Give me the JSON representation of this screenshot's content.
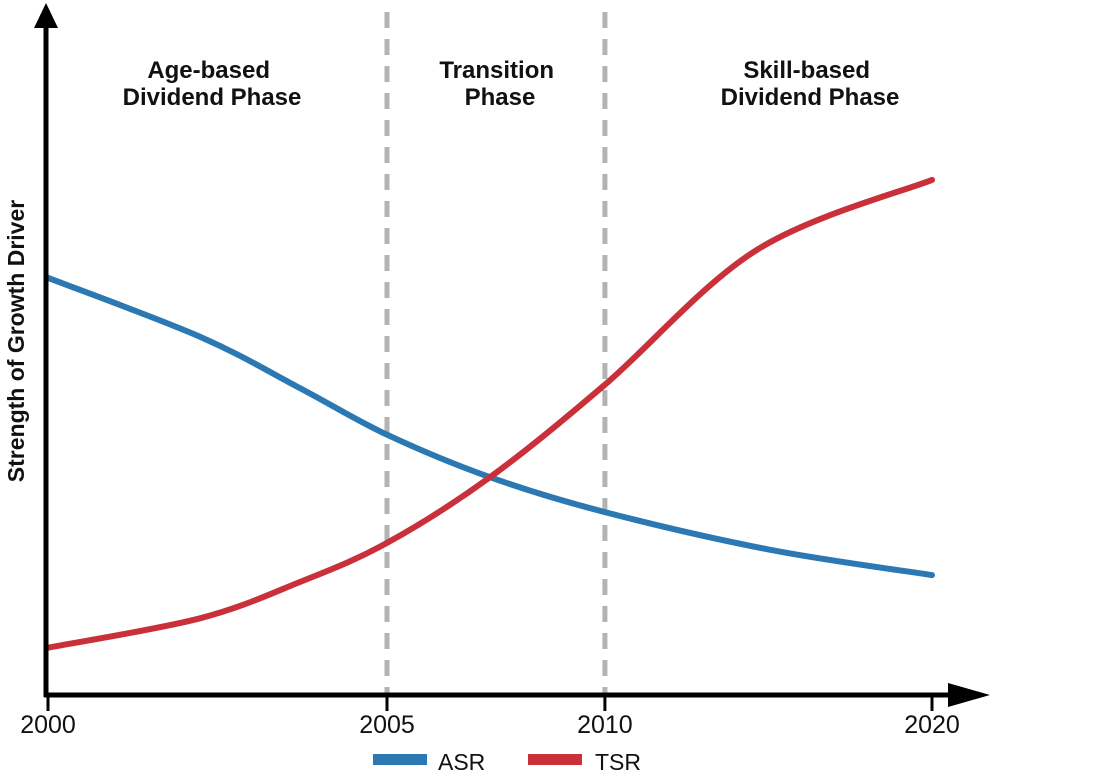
{
  "colors": {
    "asr": "#2B78B3",
    "tsr": "#C9303A",
    "divider": "#B3B3B3",
    "axis": "#000000"
  },
  "chart_data": {
    "type": "line",
    "title": "",
    "xlabel": "",
    "ylabel": "Strength of Growth Driver",
    "ylim": [
      0,
      100
    ],
    "y_axis_ticks": "none (conceptual axis, arrow only)",
    "x_axis_note": "non-linear spacing as drawn; pos = fraction of axis length from 2000 tick to 2020 tick",
    "x_ticks": [
      {
        "label": "2000",
        "pos": 0.0
      },
      {
        "label": "2005",
        "pos": 0.3835
      },
      {
        "label": "2010",
        "pos": 0.63
      },
      {
        "label": "2020",
        "pos": 1.0
      }
    ],
    "reference_lines": [
      {
        "at": "2005",
        "pos": 0.3835
      },
      {
        "at": "2010",
        "pos": 0.63
      }
    ],
    "phases": [
      {
        "line1": "Age-based",
        "line2": "Dividend Phase",
        "from": "2000",
        "to": "2005"
      },
      {
        "line1": "Transition",
        "line2": "Phase",
        "from": "2005",
        "to": "2010"
      },
      {
        "line1": "Skill-based",
        "line2": "Dividend Phase",
        "from": "2010",
        "to": "2020"
      }
    ],
    "series": [
      {
        "name": "ASR",
        "color": "#2B78B3",
        "points": [
          {
            "year": 2000,
            "pos": 0.0,
            "strength": 60.9
          },
          {
            "year": 2002,
            "pos": 0.172,
            "strength": 52.3
          },
          {
            "year": 2004,
            "pos": 0.285,
            "strength": 44.8
          },
          {
            "year": 2005,
            "pos": 0.3835,
            "strength": 38.0
          },
          {
            "year": 2007,
            "pos": 0.5,
            "strength": 31.8
          },
          {
            "year": 2010,
            "pos": 0.63,
            "strength": 26.7
          },
          {
            "year": 2015,
            "pos": 0.817,
            "strength": 21.2
          },
          {
            "year": 2020,
            "pos": 1.0,
            "strength": 17.5
          }
        ]
      },
      {
        "name": "TSR",
        "color": "#C9303A",
        "points": [
          {
            "year": 2000,
            "pos": 0.0,
            "strength": 6.9
          },
          {
            "year": 2002,
            "pos": 0.172,
            "strength": 11.2
          },
          {
            "year": 2004,
            "pos": 0.285,
            "strength": 16.5
          },
          {
            "year": 2005,
            "pos": 0.3835,
            "strength": 22.2
          },
          {
            "year": 2007,
            "pos": 0.5,
            "strength": 31.8
          },
          {
            "year": 2010,
            "pos": 0.63,
            "strength": 45.3
          },
          {
            "year": 2015,
            "pos": 0.802,
            "strength": 65.0
          },
          {
            "year": 2020,
            "pos": 1.0,
            "strength": 75.2
          }
        ]
      }
    ],
    "legend_position": "bottom-center",
    "grid": false
  }
}
